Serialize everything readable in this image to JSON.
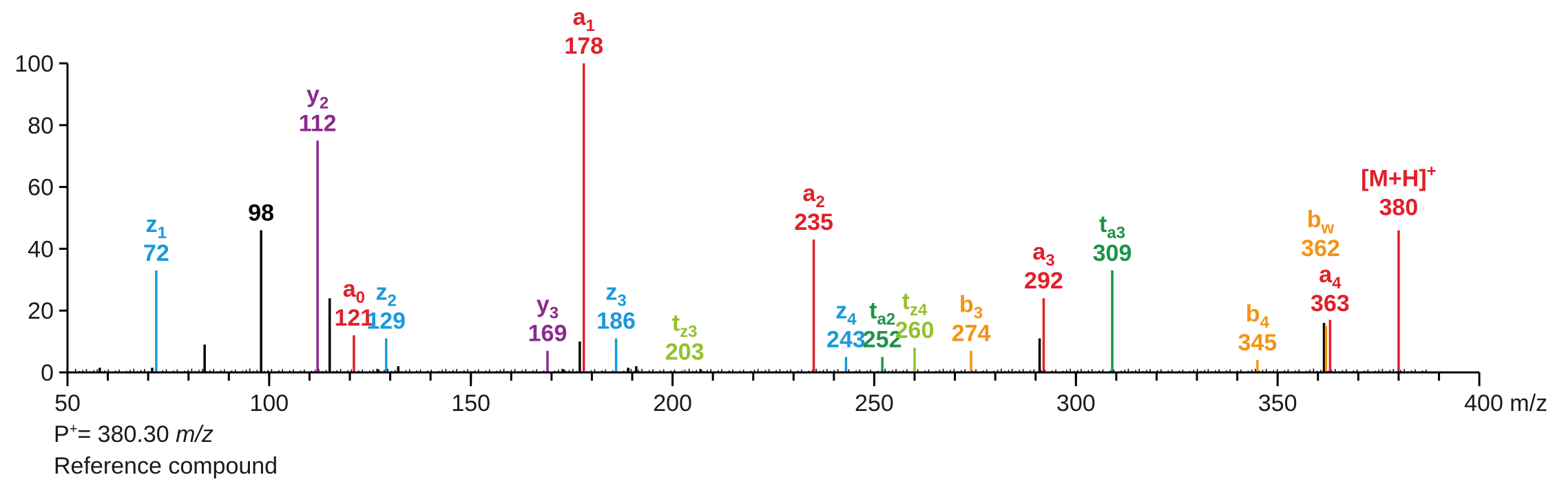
{
  "colors": {
    "axis": "#000000",
    "red": "#e0202a",
    "blue": "#1a9ad9",
    "purple": "#8b2a8e",
    "darkgreen": "#1b9447",
    "lightgreen": "#94c12a",
    "orange": "#f39414",
    "black": "#000000"
  },
  "footer": {
    "line1_prefix": "P",
    "line1_sup": "+",
    "line1_middle": "= 380.30 ",
    "line1_unit": "m/z",
    "line2": "Reference compound"
  },
  "chart_data": {
    "type": "bar",
    "subtype": "mass-spectrum-stick",
    "xlim": [
      50,
      400
    ],
    "ylim": [
      0,
      100
    ],
    "x_ticks": [
      50,
      100,
      150,
      200,
      250,
      300,
      350,
      400
    ],
    "x_tick_labels": [
      "50",
      "100",
      "150",
      "200",
      "250",
      "300",
      "350",
      "400 m/z"
    ],
    "x_minor_step": 10,
    "y_ticks": [
      0,
      20,
      40,
      60,
      80,
      100
    ],
    "y_tick_labels": [
      "0",
      "20",
      "40",
      "60",
      "80",
      "100"
    ],
    "grid": false,
    "labeled_peaks": [
      {
        "mz": 72,
        "intensity": 33,
        "color": "blue",
        "ion": "z",
        "sub": "1",
        "sup": "",
        "value": "72"
      },
      {
        "mz": 98,
        "intensity": 46,
        "color": "black",
        "ion": "",
        "sub": "",
        "sup": "",
        "value": "98"
      },
      {
        "mz": 112,
        "intensity": 75,
        "color": "purple",
        "ion": "y",
        "sub": "2",
        "sup": "",
        "value": "112"
      },
      {
        "mz": 121,
        "intensity": 12,
        "color": "red",
        "ion": "a",
        "sub": "0",
        "sup": "",
        "value": "121"
      },
      {
        "mz": 129,
        "intensity": 11,
        "color": "blue",
        "ion": "z",
        "sub": "2",
        "sup": "",
        "value": "129"
      },
      {
        "mz": 169,
        "intensity": 7,
        "color": "purple",
        "ion": "y",
        "sub": "3",
        "sup": "",
        "value": "169"
      },
      {
        "mz": 178,
        "intensity": 100,
        "color": "red",
        "ion": "a",
        "sub": "1",
        "sup": "",
        "value": "178"
      },
      {
        "mz": 186,
        "intensity": 11,
        "color": "blue",
        "ion": "z",
        "sub": "3",
        "sup": "",
        "value": "186"
      },
      {
        "mz": 203,
        "intensity": 1,
        "color": "lightgreen",
        "ion": "t",
        "sub": "z3",
        "sup": "",
        "value": "203"
      },
      {
        "mz": 235,
        "intensity": 43,
        "color": "red",
        "ion": "a",
        "sub": "2",
        "sup": "",
        "value": "235"
      },
      {
        "mz": 243,
        "intensity": 5,
        "color": "blue",
        "ion": "z",
        "sub": "4",
        "sup": "",
        "value": "243"
      },
      {
        "mz": 252,
        "intensity": 5,
        "color": "darkgreen",
        "ion": "t",
        "sub": "a2",
        "sup": "",
        "value": "252"
      },
      {
        "mz": 260,
        "intensity": 8,
        "color": "lightgreen",
        "ion": "t",
        "sub": "z4",
        "sup": "",
        "value": "260"
      },
      {
        "mz": 274,
        "intensity": 7,
        "color": "orange",
        "ion": "b",
        "sub": "3",
        "sup": "",
        "value": "274"
      },
      {
        "mz": 292,
        "intensity": 24,
        "color": "red",
        "ion": "a",
        "sub": "3",
        "sup": "",
        "value": "292"
      },
      {
        "mz": 309,
        "intensity": 33,
        "color": "darkgreen",
        "ion": "t",
        "sub": "a3",
        "sup": "",
        "value": "309"
      },
      {
        "mz": 345,
        "intensity": 4,
        "color": "orange",
        "ion": "b",
        "sub": "4",
        "sup": "",
        "value": "345"
      },
      {
        "mz": 362,
        "intensity": 15,
        "color": "orange",
        "ion": "b",
        "sub": "w",
        "sup": "",
        "value": "362"
      },
      {
        "mz": 363,
        "intensity": 17,
        "color": "red",
        "ion": "a",
        "sub": "4",
        "sup": "",
        "value": "363"
      },
      {
        "mz": 380,
        "intensity": 46,
        "color": "red",
        "ion": "[M+H]",
        "sub": "",
        "sup": "+",
        "value": "380"
      }
    ],
    "unlabeled_peaks": [
      {
        "mz": 58,
        "intensity": 1.5
      },
      {
        "mz": 71,
        "intensity": 1.5
      },
      {
        "mz": 84,
        "intensity": 9
      },
      {
        "mz": 115,
        "intensity": 24
      },
      {
        "mz": 127,
        "intensity": 1
      },
      {
        "mz": 132,
        "intensity": 2
      },
      {
        "mz": 173,
        "intensity": 1
      },
      {
        "mz": 177,
        "intensity": 10
      },
      {
        "mz": 189,
        "intensity": 1.5
      },
      {
        "mz": 191,
        "intensity": 2
      },
      {
        "mz": 207,
        "intensity": 1
      },
      {
        "mz": 291,
        "intensity": 11
      },
      {
        "mz": 361.5,
        "intensity": 16
      }
    ]
  }
}
